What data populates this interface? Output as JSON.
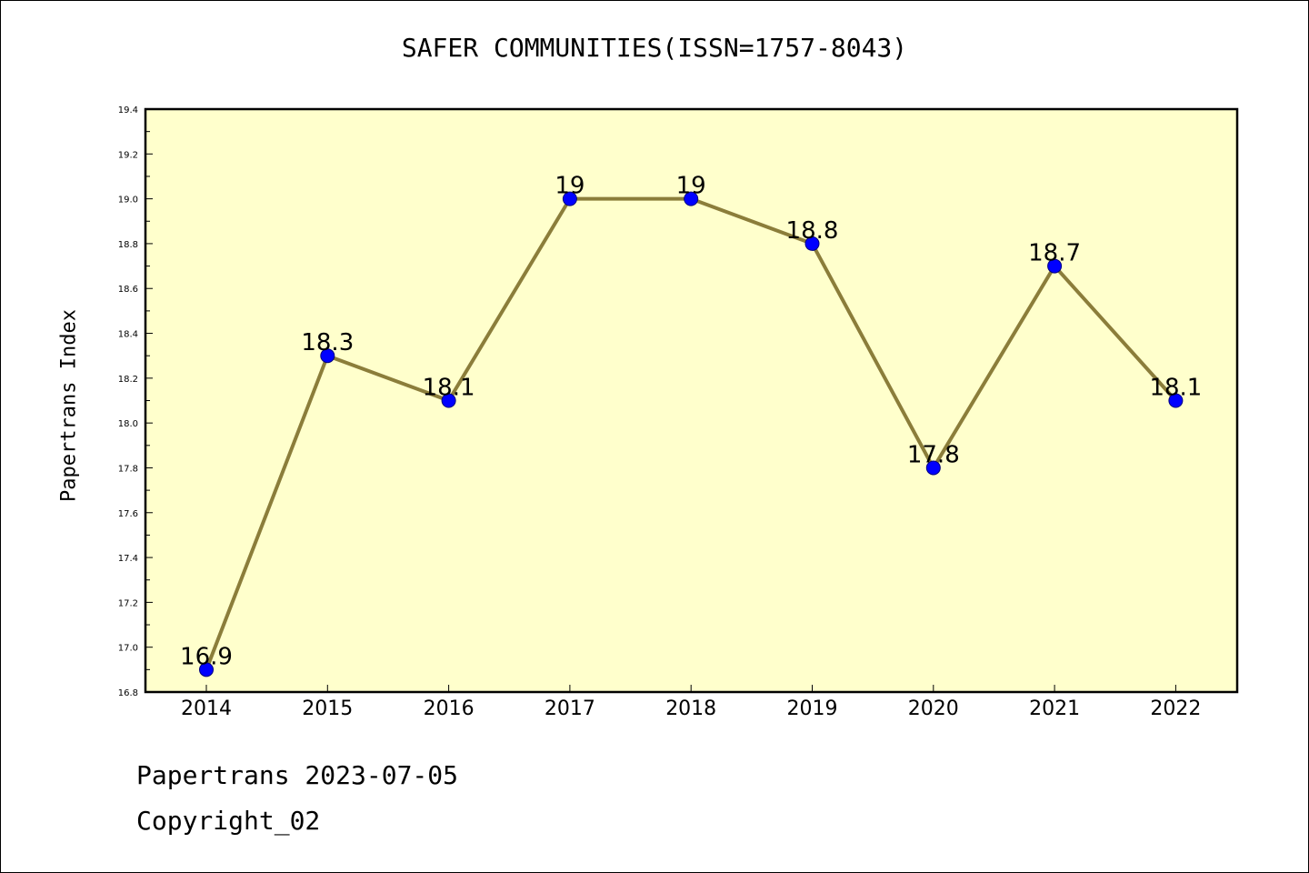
{
  "colors": {
    "plot_background": "#ffffcc",
    "line": "#8b7d3a",
    "marker_fill": "#0000ff",
    "marker_edge": "#000080",
    "axis": "#000000"
  },
  "footer": {
    "line1": "Papertrans 2023-07-05",
    "line2": "Copyright_02"
  },
  "chart_data": {
    "type": "line",
    "title": "SAFER COMMUNITIES(ISSN=1757-8043)",
    "xlabel": "",
    "ylabel": "Papertrans Index",
    "categories": [
      "2014",
      "2015",
      "2016",
      "2017",
      "2018",
      "2019",
      "2020",
      "2021",
      "2022"
    ],
    "series": [
      {
        "values": [
          16.9,
          18.3,
          18.1,
          19,
          19,
          18.8,
          17.8,
          18.7,
          18.1
        ],
        "data_labels": [
          "16.9",
          "18.3",
          "18.1",
          "19",
          "19",
          "18.8",
          "17.8",
          "18.7",
          "18.1"
        ]
      }
    ],
    "ylim": [
      16.8,
      19.4
    ],
    "yticks": [
      "16.8",
      "17.0",
      "17.2",
      "17.4",
      "17.6",
      "17.8",
      "18.0",
      "18.2",
      "18.4",
      "18.6",
      "18.8",
      "19.0",
      "19.2",
      "19.4"
    ],
    "grid": false,
    "legend": false
  }
}
